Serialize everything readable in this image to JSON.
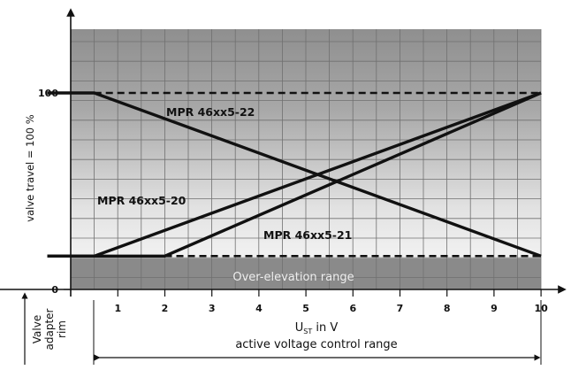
{
  "chart_data": {
    "type": "line",
    "ylabel": "valve travel = 100 %",
    "xlabel_main": "U",
    "xlabel_sub": "ST",
    "xlabel_unit": " in V",
    "xlabel_note": "active voltage control range",
    "rim_label_line1": "Valve",
    "rim_label_line2": "adapter",
    "rim_label_line3": "rim",
    "over_elevation_label": "Over-elevation range",
    "xlim": [
      0,
      10
    ],
    "x_ticks": [
      "1",
      "2",
      "3",
      "4",
      "5",
      "6",
      "7",
      "8",
      "9",
      "10"
    ],
    "y_ticks": [
      "0",
      "100"
    ],
    "series": [
      {
        "name": "MPR 46xx5-22",
        "points": [
          [
            -0.5,
            100
          ],
          [
            0.5,
            100
          ],
          [
            10,
            17
          ]
        ]
      },
      {
        "name": "MPR 46xx5-20",
        "points": [
          [
            -0.5,
            17
          ],
          [
            0.5,
            17
          ],
          [
            10,
            100
          ]
        ]
      },
      {
        "name": "MPR 46xx5-21",
        "points": [
          [
            -0.5,
            17
          ],
          [
            2,
            17
          ],
          [
            10,
            100
          ]
        ]
      }
    ],
    "reference_lines": [
      {
        "style": "dashed",
        "points": [
          [
            0.5,
            100
          ],
          [
            10,
            100
          ]
        ]
      },
      {
        "style": "dashed",
        "points": [
          [
            2,
            17
          ],
          [
            10,
            17
          ]
        ]
      }
    ]
  }
}
